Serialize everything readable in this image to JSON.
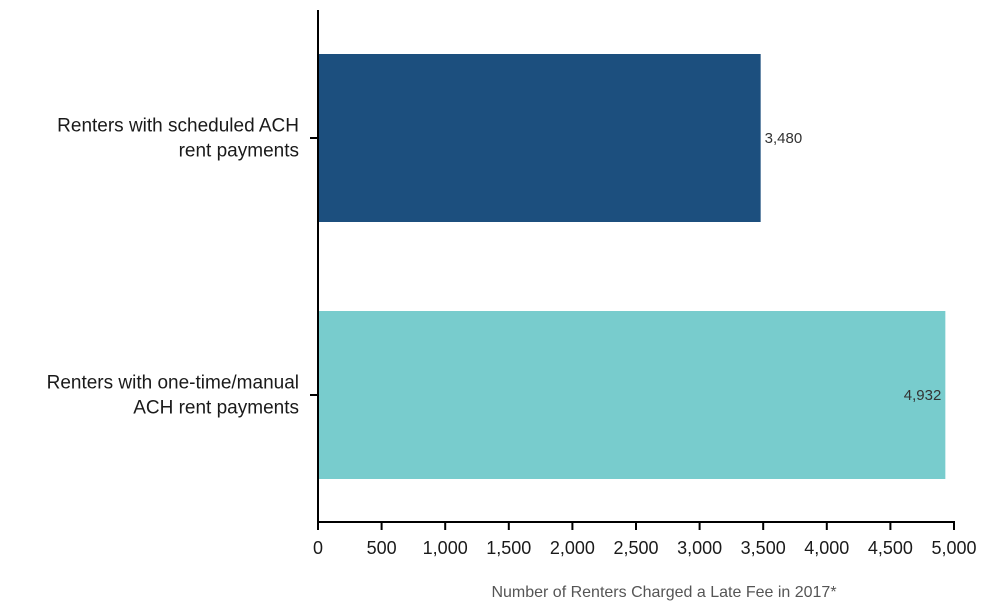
{
  "chart_data": {
    "type": "bar",
    "orientation": "horizontal",
    "categories": [
      "Renters with scheduled ACH rent payments",
      "Renters with one-time/manual ACH rent payments"
    ],
    "category_label_lines": [
      [
        "Renters with scheduled ACH",
        "rent payments"
      ],
      [
        "Renters with one-time/manual",
        "ACH rent payments"
      ]
    ],
    "values": [
      3480,
      4932
    ],
    "value_labels": [
      "3,480",
      "4,932"
    ],
    "colors": [
      "#1c4f7e",
      "#78cccd"
    ],
    "xlabel": "Number of Renters Charged a Late Fee in 2017*",
    "ylabel": "",
    "xlim": [
      0,
      5000
    ],
    "ticks": [
      0,
      500,
      1000,
      1500,
      2000,
      2500,
      3000,
      3500,
      4000,
      4500,
      5000
    ],
    "tick_labels": [
      "0",
      "500",
      "1,000",
      "1,500",
      "2,000",
      "2,500",
      "3,000",
      "3,500",
      "4,000",
      "4,500",
      "5,000"
    ],
    "grid": false,
    "legend": "none"
  }
}
